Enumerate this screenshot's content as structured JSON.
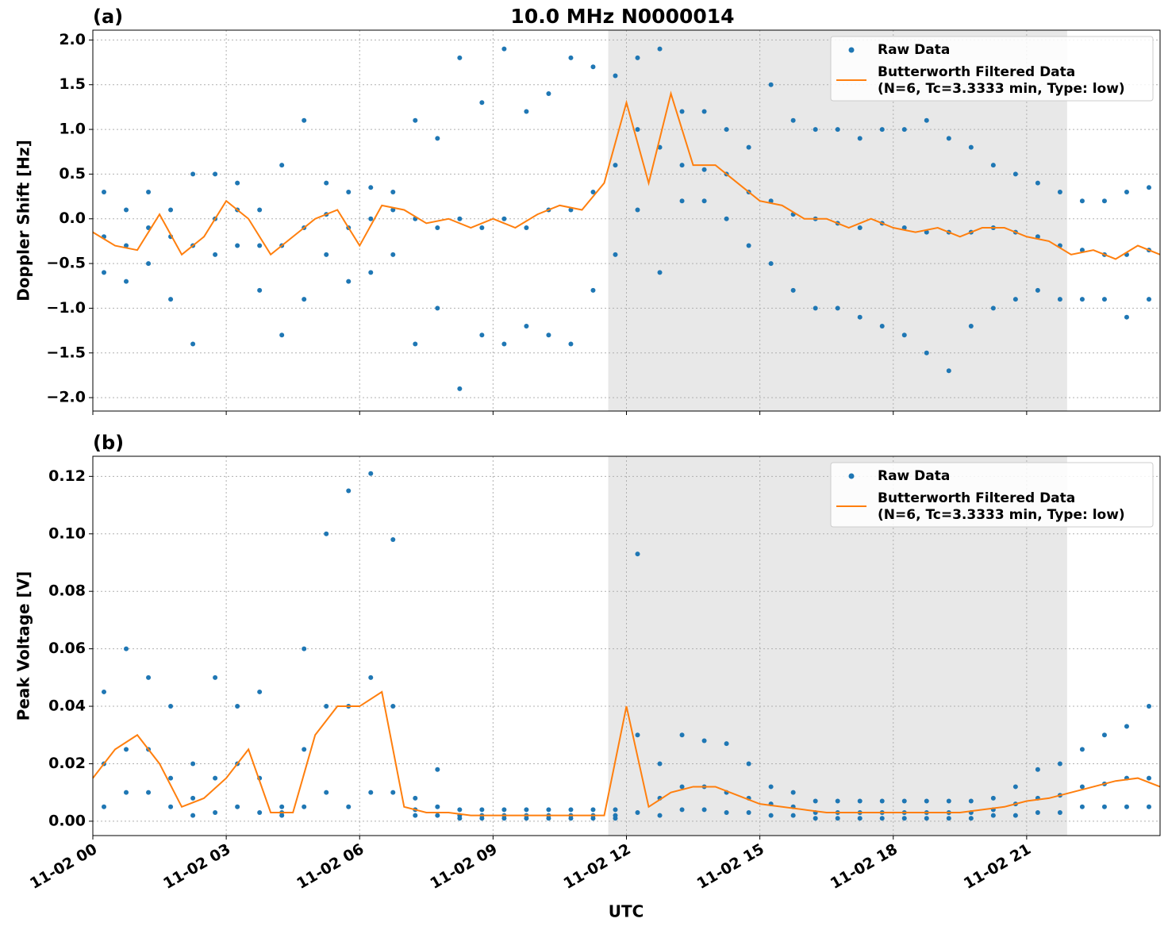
{
  "chart_data": [
    {
      "type": "line",
      "panel_label": "(a)",
      "title": "10.0 MHz N0000014",
      "ylabel": "Doppler Shift [Hz]",
      "xlim": [
        0,
        24
      ],
      "xticks": [
        0,
        3,
        6,
        9,
        12,
        15,
        18,
        21
      ],
      "ylim": [
        -2.15,
        2.11
      ],
      "yticks": [
        {
          "value": -2.0,
          "label": "−2.0"
        },
        {
          "value": -1.5,
          "label": "−1.5"
        },
        {
          "value": -1.0,
          "label": "−1.0"
        },
        {
          "value": -0.5,
          "label": "−0.5"
        },
        {
          "value": 0,
          "label": "0.0"
        },
        {
          "value": 0.5,
          "label": "0.5"
        },
        {
          "value": 1.0,
          "label": "1.0"
        },
        {
          "value": 1.5,
          "label": "1.5"
        },
        {
          "value": 2.0,
          "label": "2.0"
        }
      ],
      "grid": true,
      "legend": "upper right",
      "shade": {
        "x": [
          11.59,
          21.91
        ],
        "color": "#e8e8e8"
      },
      "series": [
        {
          "name": "Raw Data",
          "mode": "markers",
          "color": "#1f77b4",
          "x": [
            0.25,
            0.75,
            1.25,
            1.75,
            2.25,
            2.75,
            3.25,
            3.75,
            4.25,
            4.75,
            5.25,
            5.75,
            6.25,
            6.75,
            7.25,
            7.75,
            8.25,
            8.75,
            9.25,
            9.75,
            10.25,
            10.75,
            11.25,
            11.75,
            12.25,
            12.75,
            13.25,
            13.75,
            14.25,
            14.75,
            15.25,
            15.75,
            16.25,
            16.75,
            17.25,
            17.75,
            18.25,
            18.75,
            19.25,
            19.75,
            20.25,
            20.75,
            21.25,
            21.75,
            22.25,
            22.75,
            23.25,
            23.75
          ],
          "values": [
            [
              0.3,
              -0.2,
              -0.6
            ],
            [
              0.1,
              -0.3,
              -0.7
            ],
            [
              0.3,
              -0.1,
              -0.5
            ],
            [
              0.1,
              -0.2,
              -0.9
            ],
            [
              0.5,
              -0.3,
              -1.4
            ],
            [
              0.5,
              0.0,
              -0.4
            ],
            [
              0.4,
              0.1,
              -0.3
            ],
            [
              0.1,
              -0.3,
              -0.8
            ],
            [
              0.6,
              -0.3,
              -1.3
            ],
            [
              1.1,
              -0.1,
              -0.9
            ],
            [
              0.4,
              0.05,
              -0.4
            ],
            [
              0.3,
              -0.1,
              -0.7
            ],
            [
              0.35,
              0.0,
              -0.6
            ],
            [
              0.3,
              0.1,
              -0.4
            ],
            [
              1.1,
              0.0,
              -1.4
            ],
            [
              0.9,
              -0.1,
              -1.0
            ],
            [
              1.8,
              0.0,
              -1.9
            ],
            [
              1.3,
              -0.1,
              -1.3
            ],
            [
              1.9,
              0.0,
              -1.4
            ],
            [
              1.2,
              -0.1,
              -1.2
            ],
            [
              1.4,
              0.1,
              -1.3
            ],
            [
              1.8,
              0.1,
              -1.4
            ],
            [
              1.7,
              0.3,
              -0.8
            ],
            [
              1.6,
              0.6,
              -0.4
            ],
            [
              1.8,
              1.0,
              0.1
            ],
            [
              1.9,
              0.8,
              -0.6
            ],
            [
              1.2,
              0.6,
              0.2
            ],
            [
              1.2,
              0.55,
              0.2
            ],
            [
              1.0,
              0.5,
              0.0
            ],
            [
              0.8,
              0.3,
              -0.3
            ],
            [
              1.5,
              0.2,
              -0.5
            ],
            [
              1.1,
              0.05,
              -0.8
            ],
            [
              1.0,
              0.0,
              -1.0
            ],
            [
              1.0,
              -0.05,
              -1.0
            ],
            [
              0.9,
              -0.1,
              -1.1
            ],
            [
              1.0,
              -0.05,
              -1.2
            ],
            [
              1.0,
              -0.1,
              -1.3
            ],
            [
              1.1,
              -0.15,
              -1.5
            ],
            [
              0.9,
              -0.15,
              -1.7
            ],
            [
              0.8,
              -0.15,
              -1.2
            ],
            [
              0.6,
              -0.1,
              -1.0
            ],
            [
              0.5,
              -0.15,
              -0.9
            ],
            [
              0.4,
              -0.2,
              -0.8
            ],
            [
              0.3,
              -0.3,
              -0.9
            ],
            [
              0.2,
              -0.35,
              -0.9
            ],
            [
              0.2,
              -0.4,
              -0.9
            ],
            [
              0.3,
              -0.4,
              -1.1
            ],
            [
              0.35,
              -0.35,
              -0.9
            ]
          ]
        },
        {
          "name": "Butterworth Filtered Data\n(N=6, Tc=3.3333 min, Type: low)",
          "mode": "line",
          "color": "#ff7f0e",
          "x": [
            0,
            0.5,
            1,
            1.5,
            2,
            2.5,
            3,
            3.5,
            4,
            4.5,
            5,
            5.5,
            6,
            6.5,
            7,
            7.5,
            8,
            8.5,
            9,
            9.5,
            10,
            10.5,
            11,
            11.5,
            12,
            12.5,
            13,
            13.5,
            14,
            14.5,
            15,
            15.5,
            16,
            16.5,
            17,
            17.5,
            18,
            18.5,
            19,
            19.5,
            20,
            20.5,
            21,
            21.5,
            22,
            22.5,
            23,
            23.5,
            24
          ],
          "values": [
            -0.15,
            -0.3,
            -0.35,
            0.05,
            -0.4,
            -0.2,
            0.2,
            0.0,
            -0.4,
            -0.2,
            0.0,
            0.1,
            -0.3,
            0.15,
            0.1,
            -0.05,
            0.0,
            -0.1,
            0.0,
            -0.1,
            0.05,
            0.15,
            0.1,
            0.4,
            1.3,
            0.4,
            1.4,
            0.6,
            0.6,
            0.4,
            0.2,
            0.15,
            0.0,
            0.0,
            -0.1,
            0.0,
            -0.1,
            -0.15,
            -0.1,
            -0.2,
            -0.1,
            -0.1,
            -0.2,
            -0.25,
            -0.4,
            -0.35,
            -0.45,
            -0.3,
            -0.4
          ]
        }
      ]
    },
    {
      "type": "line",
      "panel_label": "(b)",
      "ylabel": "Peak Voltage [V]",
      "xlabel": "UTC",
      "xlim": [
        0,
        24
      ],
      "xticks": [
        {
          "value": 0,
          "label": "11-02 00"
        },
        {
          "value": 3,
          "label": "11-02 03"
        },
        {
          "value": 6,
          "label": "11-02 06"
        },
        {
          "value": 9,
          "label": "11-02 09"
        },
        {
          "value": 12,
          "label": "11-02 12"
        },
        {
          "value": 15,
          "label": "11-02 15"
        },
        {
          "value": 18,
          "label": "11-02 18"
        },
        {
          "value": 21,
          "label": "11-02 21"
        }
      ],
      "ylim": [
        -0.005,
        0.127
      ],
      "yticks": [
        {
          "value": 0,
          "label": "0.00"
        },
        {
          "value": 0.02,
          "label": "0.02"
        },
        {
          "value": 0.04,
          "label": "0.04"
        },
        {
          "value": 0.06,
          "label": "0.06"
        },
        {
          "value": 0.08,
          "label": "0.08"
        },
        {
          "value": 0.1,
          "label": "0.10"
        },
        {
          "value": 0.12,
          "label": "0.12"
        }
      ],
      "grid": true,
      "legend": "upper right",
      "shade": {
        "x": [
          11.59,
          21.91
        ],
        "color": "#e8e8e8"
      },
      "series": [
        {
          "name": "Raw Data",
          "mode": "markers",
          "color": "#1f77b4",
          "x": [
            0.25,
            0.75,
            1.25,
            1.75,
            2.25,
            2.75,
            3.25,
            3.75,
            4.25,
            4.75,
            5.25,
            5.75,
            6.25,
            6.75,
            7.25,
            7.75,
            8.25,
            8.75,
            9.25,
            9.75,
            10.25,
            10.75,
            11.25,
            11.75,
            12.25,
            12.75,
            13.25,
            13.75,
            14.25,
            14.75,
            15.25,
            15.75,
            16.25,
            16.75,
            17.25,
            17.75,
            18.25,
            18.75,
            19.25,
            19.75,
            20.25,
            20.75,
            21.25,
            21.75,
            22.25,
            22.75,
            23.25,
            23.75
          ],
          "values": [
            [
              0.045,
              0.02,
              0.005
            ],
            [
              0.06,
              0.025,
              0.01
            ],
            [
              0.05,
              0.025,
              0.01
            ],
            [
              0.04,
              0.015,
              0.005
            ],
            [
              0.02,
              0.008,
              0.002
            ],
            [
              0.05,
              0.015,
              0.003
            ],
            [
              0.04,
              0.02,
              0.005
            ],
            [
              0.045,
              0.015,
              0.003
            ],
            [
              0.005,
              0.003,
              0.002
            ],
            [
              0.06,
              0.025,
              0.005
            ],
            [
              0.1,
              0.04,
              0.01
            ],
            [
              0.115,
              0.04,
              0.005
            ],
            [
              0.121,
              0.05,
              0.01
            ],
            [
              0.098,
              0.04,
              0.01
            ],
            [
              0.008,
              0.004,
              0.002
            ],
            [
              0.018,
              0.005,
              0.002
            ],
            [
              0.004,
              0.002,
              0.001
            ],
            [
              0.004,
              0.002,
              0.001
            ],
            [
              0.004,
              0.002,
              0.001
            ],
            [
              0.004,
              0.002,
              0.001
            ],
            [
              0.004,
              0.002,
              0.001
            ],
            [
              0.004,
              0.002,
              0.001
            ],
            [
              0.004,
              0.002,
              0.001
            ],
            [
              0.004,
              0.002,
              0.001
            ],
            [
              0.093,
              0.03,
              0.003
            ],
            [
              0.02,
              0.008,
              0.002
            ],
            [
              0.03,
              0.012,
              0.004
            ],
            [
              0.028,
              0.012,
              0.004
            ],
            [
              0.027,
              0.01,
              0.003
            ],
            [
              0.02,
              0.008,
              0.003
            ],
            [
              0.012,
              0.006,
              0.002
            ],
            [
              0.01,
              0.005,
              0.002
            ],
            [
              0.007,
              0.003,
              0.001
            ],
            [
              0.007,
              0.003,
              0.001
            ],
            [
              0.007,
              0.003,
              0.001
            ],
            [
              0.007,
              0.003,
              0.001
            ],
            [
              0.007,
              0.003,
              0.001
            ],
            [
              0.007,
              0.003,
              0.001
            ],
            [
              0.007,
              0.003,
              0.001
            ],
            [
              0.007,
              0.003,
              0.001
            ],
            [
              0.008,
              0.004,
              0.002
            ],
            [
              0.012,
              0.006,
              0.002
            ],
            [
              0.018,
              0.008,
              0.003
            ],
            [
              0.02,
              0.009,
              0.003
            ],
            [
              0.025,
              0.012,
              0.005
            ],
            [
              0.03,
              0.013,
              0.005
            ],
            [
              0.033,
              0.015,
              0.005
            ],
            [
              0.04,
              0.015,
              0.005
            ]
          ]
        },
        {
          "name": "Butterworth Filtered Data\n(N=6, Tc=3.3333 min, Type: low)",
          "mode": "line",
          "color": "#ff7f0e",
          "x": [
            0,
            0.5,
            1,
            1.5,
            2,
            2.5,
            3,
            3.5,
            4,
            4.5,
            5,
            5.5,
            6,
            6.5,
            7,
            7.5,
            8,
            8.5,
            9,
            9.5,
            10,
            10.5,
            11,
            11.5,
            12,
            12.5,
            13,
            13.5,
            14,
            14.5,
            15,
            15.5,
            16,
            16.5,
            17,
            17.5,
            18,
            18.5,
            19,
            19.5,
            20,
            20.5,
            21,
            21.5,
            22,
            22.5,
            23,
            23.5,
            24
          ],
          "values": [
            0.015,
            0.025,
            0.03,
            0.02,
            0.005,
            0.008,
            0.015,
            0.025,
            0.003,
            0.003,
            0.03,
            0.04,
            0.04,
            0.045,
            0.005,
            0.003,
            0.003,
            0.002,
            0.002,
            0.002,
            0.002,
            0.002,
            0.002,
            0.002,
            0.04,
            0.005,
            0.01,
            0.012,
            0.012,
            0.009,
            0.006,
            0.005,
            0.004,
            0.003,
            0.003,
            0.003,
            0.003,
            0.003,
            0.003,
            0.003,
            0.004,
            0.005,
            0.007,
            0.008,
            0.01,
            0.012,
            0.014,
            0.015,
            0.012
          ]
        }
      ]
    }
  ]
}
